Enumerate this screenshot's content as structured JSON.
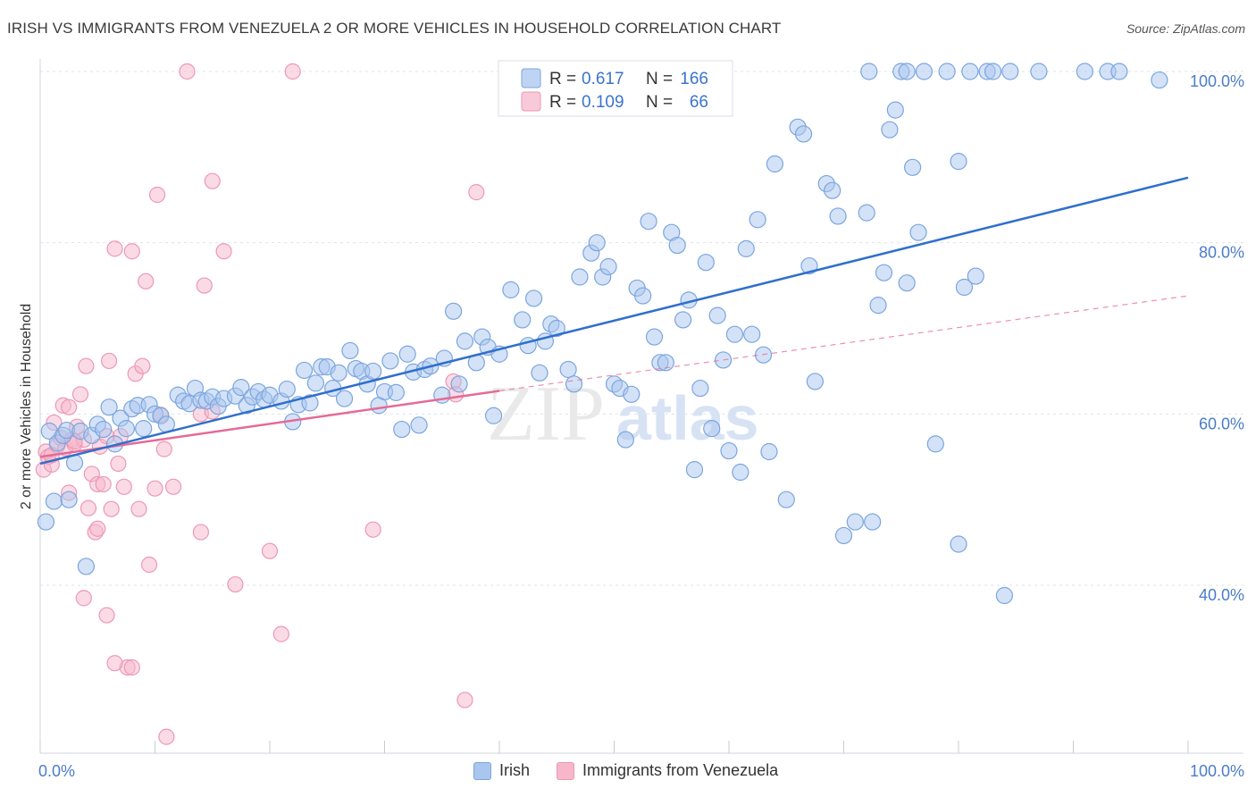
{
  "title": "IRISH VS IMMIGRANTS FROM VENEZUELA 2 OR MORE VEHICLES IN HOUSEHOLD CORRELATION CHART",
  "source": "Source: ZipAtlas.com",
  "watermark": {
    "zip": "ZIP",
    "atlas": "atlas"
  },
  "chart_data": {
    "type": "scatter",
    "ylabel": "2 or more Vehicles in Household",
    "xlabel": "",
    "xlim": [
      0,
      100
    ],
    "ylim": [
      20,
      103
    ],
    "x_tick_labels": {
      "min": "0.0%",
      "max": "100.0%"
    },
    "y_ticks": [
      {
        "value": 40,
        "label": "40.0%"
      },
      {
        "value": 60,
        "label": "60.0%"
      },
      {
        "value": 80,
        "label": "80.0%"
      },
      {
        "value": 100,
        "label": "100.0%"
      }
    ],
    "grid": "dashed horizontal",
    "legend_placement": "top-center",
    "colors": {
      "irish_fill": "#a9c6ef",
      "irish_stroke": "#7aa5de",
      "irish_line": "#2f6fce",
      "ven_fill": "#f6b7cb",
      "ven_stroke": "#ee97b3",
      "ven_line": "#e56a97"
    },
    "stats": [
      {
        "r_label": "R = ",
        "r_value": "0.617",
        "n_label": "N = ",
        "n_value": "166"
      },
      {
        "r_label": "R = ",
        "r_value": "0.109",
        "n_label": "N = ",
        "n_value": "66"
      }
    ],
    "series": [
      {
        "name": "Irish",
        "trend": {
          "x": [
            0,
            100
          ],
          "y": [
            54.2,
            87.6
          ]
        },
        "points": [
          [
            0.5,
            47.4
          ],
          [
            0.8,
            58.0
          ],
          [
            1.2,
            49.8
          ],
          [
            1.5,
            56.6
          ],
          [
            2.0,
            57.5
          ],
          [
            2.3,
            58.1
          ],
          [
            2.5,
            50.0
          ],
          [
            3.0,
            54.3
          ],
          [
            3.5,
            58.0
          ],
          [
            4.0,
            42.2
          ],
          [
            4.5,
            57.5
          ],
          [
            5.0,
            58.8
          ],
          [
            5.5,
            58.2
          ],
          [
            6.0,
            60.8
          ],
          [
            6.5,
            56.5
          ],
          [
            7.0,
            59.5
          ],
          [
            7.5,
            58.3
          ],
          [
            8.0,
            60.6
          ],
          [
            8.5,
            61.0
          ],
          [
            9.0,
            58.3
          ],
          [
            9.5,
            61.1
          ],
          [
            10.0,
            60.0
          ],
          [
            10.5,
            59.8
          ],
          [
            11.0,
            58.8
          ],
          [
            12.0,
            62.2
          ],
          [
            12.5,
            61.5
          ],
          [
            13.0,
            61.2
          ],
          [
            13.5,
            63.0
          ],
          [
            14.0,
            61.6
          ],
          [
            14.5,
            61.5
          ],
          [
            15.0,
            62.0
          ],
          [
            15.5,
            60.9
          ],
          [
            16.0,
            61.8
          ],
          [
            17.0,
            62.1
          ],
          [
            17.5,
            63.1
          ],
          [
            18.0,
            61.0
          ],
          [
            18.5,
            62.0
          ],
          [
            19.0,
            62.6
          ],
          [
            19.5,
            61.7
          ],
          [
            20.0,
            62.2
          ],
          [
            21.0,
            61.5
          ],
          [
            21.5,
            62.9
          ],
          [
            22.0,
            59.1
          ],
          [
            22.5,
            61.1
          ],
          [
            23.0,
            65.1
          ],
          [
            23.5,
            61.3
          ],
          [
            24.0,
            63.6
          ],
          [
            24.5,
            65.5
          ],
          [
            25.0,
            65.5
          ],
          [
            25.5,
            63.0
          ],
          [
            26.0,
            64.8
          ],
          [
            26.5,
            61.8
          ],
          [
            27.0,
            67.4
          ],
          [
            27.5,
            65.3
          ],
          [
            28.0,
            65.0
          ],
          [
            28.5,
            63.5
          ],
          [
            29.0,
            65.0
          ],
          [
            29.5,
            61.0
          ],
          [
            30.0,
            62.6
          ],
          [
            30.5,
            66.2
          ],
          [
            31.0,
            62.5
          ],
          [
            31.5,
            58.2
          ],
          [
            32.0,
            67.0
          ],
          [
            32.5,
            64.9
          ],
          [
            33.0,
            58.7
          ],
          [
            33.5,
            65.2
          ],
          [
            34.0,
            65.6
          ],
          [
            35.0,
            62.2
          ],
          [
            35.2,
            66.5
          ],
          [
            36.0,
            72.0
          ],
          [
            36.5,
            63.5
          ],
          [
            37.0,
            68.5
          ],
          [
            38.0,
            66.0
          ],
          [
            38.5,
            69.0
          ],
          [
            39.0,
            67.8
          ],
          [
            39.5,
            59.8
          ],
          [
            40.0,
            67.0
          ],
          [
            41.0,
            74.5
          ],
          [
            42.0,
            71.0
          ],
          [
            42.5,
            68.0
          ],
          [
            43.0,
            73.5
          ],
          [
            43.5,
            64.8
          ],
          [
            44.0,
            68.5
          ],
          [
            44.5,
            70.5
          ],
          [
            45.0,
            70.0
          ],
          [
            46.0,
            65.2
          ],
          [
            46.5,
            63.5
          ],
          [
            47.0,
            76.0
          ],
          [
            48.0,
            78.8
          ],
          [
            48.5,
            80.0
          ],
          [
            49.0,
            76.0
          ],
          [
            49.5,
            77.2
          ],
          [
            50.0,
            63.5
          ],
          [
            50.5,
            63.0
          ],
          [
            51.0,
            57.0
          ],
          [
            51.5,
            62.3
          ],
          [
            52.0,
            74.7
          ],
          [
            52.5,
            73.8
          ],
          [
            53.0,
            82.5
          ],
          [
            53.5,
            69.0
          ],
          [
            54.0,
            66.0
          ],
          [
            54.5,
            66.0
          ],
          [
            55.0,
            81.2
          ],
          [
            55.5,
            79.7
          ],
          [
            56.0,
            71.0
          ],
          [
            56.5,
            73.3
          ],
          [
            57.0,
            53.5
          ],
          [
            57.5,
            63.0
          ],
          [
            58.0,
            77.7
          ],
          [
            58.5,
            58.3
          ],
          [
            59.0,
            71.5
          ],
          [
            59.5,
            66.3
          ],
          [
            60.0,
            55.7
          ],
          [
            60.5,
            69.3
          ],
          [
            61.0,
            53.2
          ],
          [
            61.5,
            79.3
          ],
          [
            62.0,
            69.3
          ],
          [
            62.5,
            82.7
          ],
          [
            63.0,
            66.9
          ],
          [
            63.5,
            55.6
          ],
          [
            64.0,
            89.2
          ],
          [
            65.0,
            50.0
          ],
          [
            66.0,
            93.5
          ],
          [
            66.5,
            92.7
          ],
          [
            67.0,
            77.3
          ],
          [
            67.5,
            63.8
          ],
          [
            68.5,
            86.9
          ],
          [
            69.0,
            86.1
          ],
          [
            69.5,
            83.1
          ],
          [
            70.0,
            45.8
          ],
          [
            71.0,
            47.4
          ],
          [
            72.0,
            83.5
          ],
          [
            72.5,
            47.4
          ],
          [
            73.0,
            72.7
          ],
          [
            73.5,
            76.5
          ],
          [
            74.0,
            93.2
          ],
          [
            74.5,
            95.5
          ],
          [
            75.0,
            100.0
          ],
          [
            75.5,
            75.3
          ],
          [
            76.0,
            88.8
          ],
          [
            76.5,
            81.2
          ],
          [
            77.0,
            100.0
          ],
          [
            78.0,
            56.5
          ],
          [
            79.0,
            100.0
          ],
          [
            80.0,
            44.8
          ],
          [
            80.0,
            89.5
          ],
          [
            80.5,
            74.8
          ],
          [
            81.0,
            100.0
          ],
          [
            81.5,
            76.1
          ],
          [
            82.5,
            100.0
          ],
          [
            83.0,
            100.0
          ],
          [
            84.0,
            38.8
          ],
          [
            84.5,
            100.0
          ],
          [
            87.0,
            100.0
          ],
          [
            91.0,
            100.0
          ],
          [
            93.0,
            100.0
          ],
          [
            94.0,
            100.0
          ],
          [
            97.5,
            99.0
          ],
          [
            75.5,
            100.0
          ],
          [
            72.2,
            100.0
          ]
        ]
      },
      {
        "name": "Immigrants from Venezuela",
        "trend": {
          "x": [
            0,
            40
          ],
          "y": [
            55.0,
            62.7
          ]
        },
        "trend_extension": {
          "x": [
            40,
            100
          ],
          "y": [
            62.7,
            73.8
          ]
        },
        "points": [
          [
            0.3,
            53.5
          ],
          [
            0.5,
            55.6
          ],
          [
            0.7,
            55.0
          ],
          [
            1.0,
            54.1
          ],
          [
            1.2,
            59.0
          ],
          [
            1.5,
            56.3
          ],
          [
            1.8,
            57.2
          ],
          [
            2.0,
            61.0
          ],
          [
            2.2,
            56.0
          ],
          [
            2.5,
            60.8
          ],
          [
            2.8,
            57.0
          ],
          [
            3.0,
            56.5
          ],
          [
            3.2,
            58.5
          ],
          [
            3.5,
            62.3
          ],
          [
            3.8,
            57.0
          ],
          [
            4.0,
            65.6
          ],
          [
            4.2,
            49.0
          ],
          [
            4.5,
            53.0
          ],
          [
            4.8,
            46.2
          ],
          [
            5.0,
            51.8
          ],
          [
            5.2,
            56.2
          ],
          [
            5.5,
            51.8
          ],
          [
            5.8,
            57.4
          ],
          [
            6.0,
            66.2
          ],
          [
            6.2,
            48.9
          ],
          [
            6.5,
            79.3
          ],
          [
            6.8,
            54.2
          ],
          [
            7.0,
            57.4
          ],
          [
            7.3,
            51.5
          ],
          [
            7.6,
            30.4
          ],
          [
            8.0,
            79.0
          ],
          [
            8.3,
            64.7
          ],
          [
            8.6,
            48.9
          ],
          [
            8.9,
            65.6
          ],
          [
            9.2,
            75.5
          ],
          [
            9.5,
            42.4
          ],
          [
            10.0,
            51.3
          ],
          [
            10.2,
            85.6
          ],
          [
            10.5,
            59.9
          ],
          [
            10.8,
            55.9
          ],
          [
            11.0,
            22.3
          ],
          [
            11.6,
            51.5
          ],
          [
            12.8,
            100.0
          ],
          [
            14.0,
            46.2
          ],
          [
            14.3,
            75.0
          ],
          [
            15.0,
            87.2
          ],
          [
            16.0,
            79.0
          ],
          [
            17.0,
            40.1
          ],
          [
            20.0,
            44.0
          ],
          [
            21.0,
            34.3
          ],
          [
            22.0,
            100.0
          ],
          [
            29.0,
            46.5
          ],
          [
            36.0,
            63.8
          ],
          [
            36.2,
            62.3
          ],
          [
            37.0,
            26.6
          ],
          [
            38.0,
            85.9
          ],
          [
            5.0,
            46.6
          ],
          [
            3.8,
            38.5
          ],
          [
            5.8,
            36.5
          ],
          [
            6.5,
            30.9
          ],
          [
            8.0,
            30.4
          ],
          [
            1.0,
            55.2
          ],
          [
            2.5,
            50.8
          ],
          [
            3.0,
            56.8
          ],
          [
            14.0,
            60.0
          ],
          [
            15.0,
            60.3
          ]
        ]
      }
    ]
  },
  "legend": {
    "series1": "Irish",
    "series2": "Immigrants from Venezuela"
  }
}
